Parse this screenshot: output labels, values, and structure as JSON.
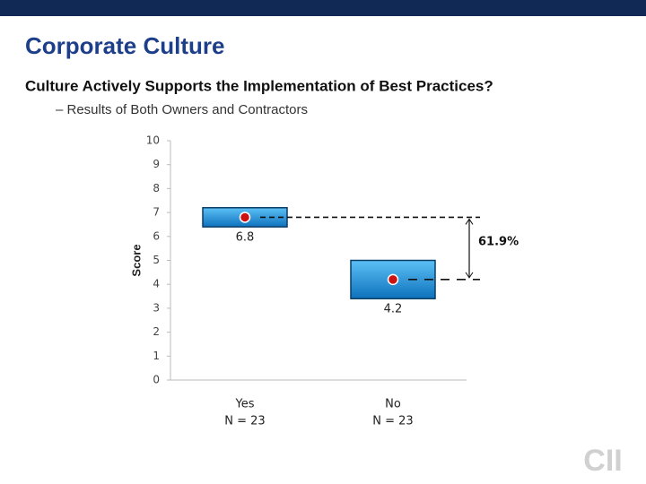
{
  "header": {
    "title": "Corporate Culture",
    "subtitle": "Culture Actively Supports the Implementation of Best Practices?",
    "bullet": "– Results of Both Owners and Contractors"
  },
  "chart_data": {
    "type": "box",
    "ylabel": "Score",
    "categories": [
      "Yes",
      "No"
    ],
    "n_labels": [
      "N = 23",
      "N = 23"
    ],
    "values": [
      6.8,
      4.2
    ],
    "box_low": [
      6.4,
      3.4
    ],
    "box_high": [
      7.2,
      5.0
    ],
    "color": "#1a8fd6",
    "marker_color": "#cc1111",
    "annotation": "61.9%",
    "ylim": [
      0,
      10
    ],
    "yticks": [
      0,
      1,
      2,
      3,
      4,
      5,
      6,
      7,
      8,
      9,
      10
    ]
  },
  "logo": "CII"
}
